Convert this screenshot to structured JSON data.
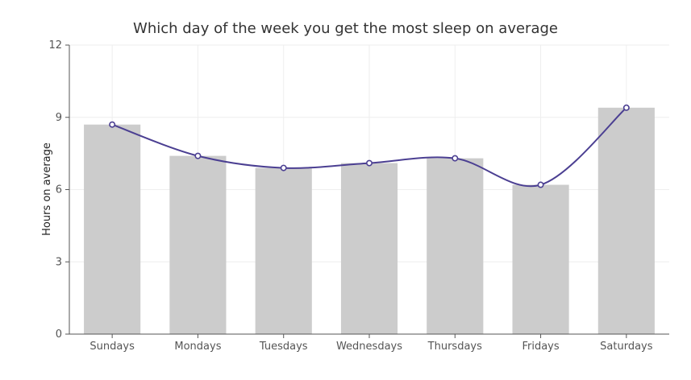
{
  "chart_data": {
    "type": "bar",
    "title": "Which day of the week you get the most sleep on average",
    "xlabel": "",
    "ylabel": "Hours on average",
    "categories": [
      "Sundays",
      "Mondays",
      "Tuesdays",
      "Wednesdays",
      "Thursdays",
      "Fridays",
      "Saturdays"
    ],
    "series": [
      {
        "type": "bar",
        "values": [
          8.7,
          7.4,
          6.9,
          7.1,
          7.3,
          6.2,
          9.4
        ]
      },
      {
        "type": "line",
        "smooth": true,
        "values": [
          8.7,
          7.4,
          6.9,
          7.1,
          7.3,
          6.2,
          9.4
        ]
      }
    ],
    "ylim": [
      0,
      12
    ],
    "yticks": [
      0,
      3,
      6,
      9,
      12
    ],
    "grid": true,
    "legend": "none",
    "colors": {
      "bar": "#cccccc",
      "line": "#4b3f92",
      "marker_fill": "#ffffff",
      "grid": "#eeeeee",
      "axis": "#555555"
    }
  }
}
